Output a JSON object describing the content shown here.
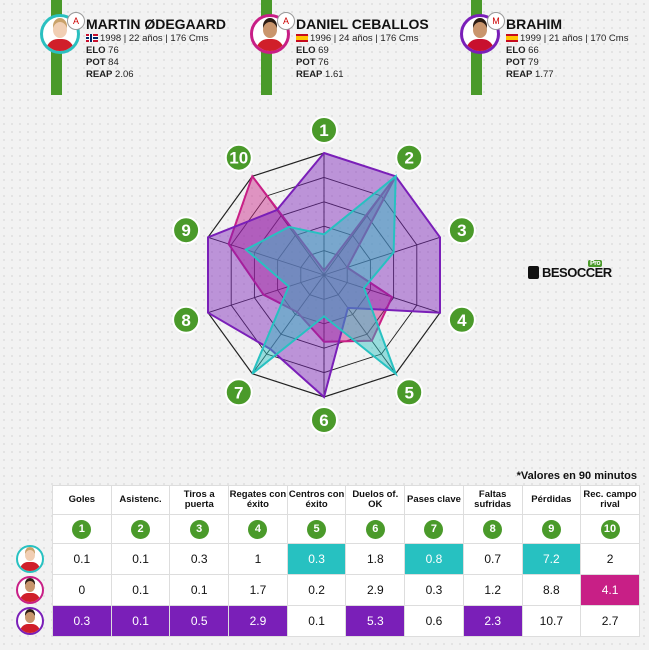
{
  "players": [
    {
      "name": "MARTIN ØDEGAARD",
      "info": "1998 | 22 años | 176 Cms",
      "elo_label": "ELO",
      "elo": "76",
      "pot_label": "POT",
      "pot": "84",
      "reap_label": "REAP",
      "reap": "2.06",
      "ring_color": "#2ac0c0",
      "crest": "A",
      "flag": "norway-flag-icon"
    },
    {
      "name": "DANIEL CEBALLOS",
      "info": "1996 | 24 años | 176 Cms",
      "elo_label": "ELO",
      "elo": "69",
      "pot_label": "POT",
      "pot": "76",
      "reap_label": "REAP",
      "reap": "1.61",
      "ring_color": "#c81f86",
      "crest": "A",
      "flag": "spain-flag-icon"
    },
    {
      "name": "BRAHIM",
      "info": "1999 | 21 años | 170 Cms",
      "elo_label": "ELO",
      "elo": "66",
      "pot_label": "POT",
      "pot": "79",
      "reap_label": "REAP",
      "reap": "1.77",
      "ring_color": "#7a1fb8",
      "crest": "M",
      "flag": "spain-flag-icon"
    }
  ],
  "brand": {
    "name": "BESOCCER",
    "badge": "Pro"
  },
  "note": "*Valores en 90 minutos",
  "chart_data": {
    "type": "radar",
    "axes": [
      "1",
      "2",
      "3",
      "4",
      "5",
      "6",
      "7",
      "8",
      "9",
      "10"
    ],
    "categories": [
      "Goles",
      "Asistenc.",
      "Tiros a puerta",
      "Regates con éxito",
      "Centros con éxito",
      "Duelos of. OK",
      "Pases clave",
      "Faltas sufridas",
      "Pérdidas",
      "Rec. campo rival"
    ],
    "series": [
      {
        "values": [
          "0.1",
          "0.1",
          "0.3",
          "1",
          "0.3",
          "1.8",
          "0.8",
          "0.7",
          "7.2",
          "2"
        ],
        "color": "#27c1c1",
        "best": [
          false,
          false,
          false,
          false,
          true,
          false,
          true,
          false,
          true,
          false
        ]
      },
      {
        "values": [
          "0",
          "0.1",
          "0.1",
          "1.7",
          "0.2",
          "2.9",
          "0.3",
          "1.2",
          "8.8",
          "4.1"
        ],
        "color": "#c81f86",
        "best": [
          false,
          false,
          false,
          false,
          false,
          false,
          false,
          false,
          false,
          true
        ]
      },
      {
        "values": [
          "0.3",
          "0.1",
          "0.5",
          "2.9",
          "0.1",
          "5.3",
          "0.6",
          "2.3",
          "10.7",
          "2.7"
        ],
        "color": "#7a1fb8",
        "best": [
          true,
          true,
          true,
          true,
          false,
          true,
          false,
          true,
          false,
          false
        ]
      }
    ],
    "radar_levels": 5,
    "series_fill_opacity": 0.45
  }
}
